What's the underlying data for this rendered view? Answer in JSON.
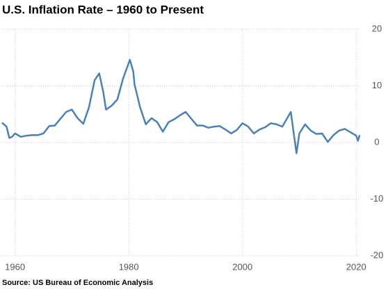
{
  "chart_data": {
    "type": "line",
    "title": "U.S. Inflation Rate – 1960 to Present",
    "source": "Source: US Bureau of Economic Analysis",
    "x": [
      1957.7,
      1958.5,
      1959.0,
      1959.5,
      1960,
      1961,
      1962,
      1963,
      1964,
      1965,
      1966,
      1967,
      1968,
      1969,
      1970,
      1971,
      1972,
      1973,
      1974,
      1974.8,
      1975.5,
      1976,
      1977,
      1978,
      1979,
      1980.2,
      1980.8,
      1981,
      1982,
      1983,
      1984,
      1985,
      1986,
      1987,
      1988,
      1989,
      1990,
      1991,
      1992,
      1993,
      1994,
      1995,
      1996,
      1997,
      1998,
      1999,
      2000,
      2001,
      2002,
      2003,
      2004,
      2005,
      2006,
      2007,
      2008.5,
      2009.5,
      2010,
      2011,
      2012,
      2013,
      2014,
      2015,
      2016,
      2017,
      2018,
      2019,
      2020,
      2020.3,
      2020.6
    ],
    "series": [
      {
        "name": "Inflation rate",
        "color": "#4a80b6",
        "values": [
          3.5,
          2.8,
          0.8,
          1.0,
          1.6,
          1.0,
          1.2,
          1.3,
          1.3,
          1.6,
          2.9,
          3.0,
          4.2,
          5.4,
          5.8,
          4.3,
          3.3,
          6.2,
          11.0,
          12.2,
          9.0,
          5.8,
          6.5,
          7.6,
          11.3,
          14.6,
          12.5,
          10.3,
          6.2,
          3.2,
          4.3,
          3.6,
          1.9,
          3.6,
          4.1,
          4.8,
          5.4,
          4.2,
          3.0,
          3.0,
          2.6,
          2.8,
          2.9,
          2.3,
          1.6,
          2.2,
          3.4,
          2.8,
          1.6,
          2.3,
          2.7,
          3.4,
          3.2,
          2.8,
          5.4,
          -1.9,
          1.6,
          3.2,
          2.1,
          1.5,
          1.6,
          0.1,
          1.3,
          2.1,
          2.4,
          1.8,
          1.2,
          0.3,
          1.3
        ]
      }
    ],
    "xlim": [
      1957.6,
      2020.7
    ],
    "xticks": [
      1960,
      1980,
      2000,
      2020
    ],
    "ylim": [
      -20,
      20
    ],
    "yticks": [
      -20,
      -10,
      0,
      10,
      20
    ],
    "grid": true
  }
}
